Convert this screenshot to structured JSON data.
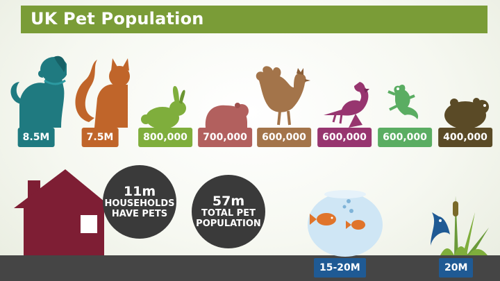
{
  "title": "UK Pet Population",
  "colors": {
    "title_bg": "#7a9c37",
    "dog": "#1f7a80",
    "cat": "#c0652a",
    "rabbit": "#7fae3c",
    "guinea_pig": "#b2605e",
    "chicken": "#a3744a",
    "bird": "#97356f",
    "lizard": "#5aad62",
    "hamster": "#5a4a26",
    "house": "#7e1e34",
    "circle": "#3a3a3a",
    "water_label": "#1f5a94"
  },
  "pets": [
    {
      "name": "dogs",
      "icon": "dog-icon",
      "value": "8.5M"
    },
    {
      "name": "cats",
      "icon": "cat-icon",
      "value": "7.5M"
    },
    {
      "name": "rabbits",
      "icon": "rabbit-icon",
      "value": "800,000"
    },
    {
      "name": "guinea pigs",
      "icon": "guinea-pig-icon",
      "value": "700,000"
    },
    {
      "name": "chickens",
      "icon": "chicken-icon",
      "value": "600,000"
    },
    {
      "name": "birds",
      "icon": "bird-icon",
      "value": "600,000"
    },
    {
      "name": "lizards",
      "icon": "lizard-icon",
      "value": "600,000"
    },
    {
      "name": "hamsters",
      "icon": "hamster-icon",
      "value": "400,000"
    }
  ],
  "households": {
    "number": "11m",
    "line1": "HOUSEHOLDS",
    "line2": "HAVE PETS"
  },
  "total": {
    "number": "57m",
    "line1": "TOTAL PET",
    "line2": "POPULATION"
  },
  "indoor_fish": {
    "icon": "fishbowl-icon",
    "value": "15-20M"
  },
  "outdoor_fish": {
    "icon": "pond-fish-icon",
    "value": "20M"
  }
}
